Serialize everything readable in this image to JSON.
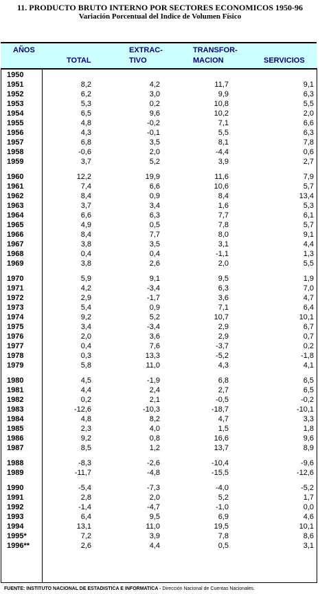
{
  "title": "11.  PRODUCTO BRUTO INTERNO POR SECTORES ECONOMICOS 1950-96",
  "subtitle": "Variación Porcentual del Indice de Volumen Físico",
  "columns": {
    "year": "AÑOS",
    "total": "TOTAL",
    "extractivo_1": "EXTRAC-",
    "extractivo_2": "TIVO",
    "transformacion_1": "TRANSFOR-",
    "transformacion_2": "MACION",
    "servicios": "SERVICIOS"
  },
  "groups": [
    [
      {
        "year": "1950",
        "total": "",
        "ext": "",
        "trans": "",
        "serv": ""
      },
      {
        "year": "1951",
        "total": "8,2",
        "ext": "4,2",
        "trans": "11,7",
        "serv": "9,1"
      },
      {
        "year": "1952",
        "total": "6,2",
        "ext": "3,0",
        "trans": "9,9",
        "serv": "6,3"
      },
      {
        "year": "1953",
        "total": "5,3",
        "ext": "0,2",
        "trans": "10,8",
        "serv": "5,5"
      },
      {
        "year": "1954",
        "total": "6,5",
        "ext": "9,6",
        "trans": "10,2",
        "serv": "2,0"
      },
      {
        "year": "1955",
        "total": "4,8",
        "ext": "-0,2",
        "trans": "7,1",
        "serv": "6,6"
      },
      {
        "year": "1956",
        "total": "4,3",
        "ext": "-0,1",
        "trans": "5,5",
        "serv": "6,3"
      },
      {
        "year": "1957",
        "total": "6,8",
        "ext": "3,5",
        "trans": "8,1",
        "serv": "7,8"
      },
      {
        "year": "1958",
        "total": "-0,6",
        "ext": "2,0",
        "trans": "-4,4",
        "serv": "0,6"
      },
      {
        "year": "1959",
        "total": "3,7",
        "ext": "5,2",
        "trans": "3,9",
        "serv": "2,7"
      }
    ],
    [
      {
        "year": "1960",
        "total": "12,2",
        "ext": "19,9",
        "trans": "11,6",
        "serv": "7,9"
      },
      {
        "year": "1961",
        "total": "7,4",
        "ext": "6,6",
        "trans": "10,6",
        "serv": "5,7"
      },
      {
        "year": "1962",
        "total": "8,4",
        "ext": "0,9",
        "trans": "8,4",
        "serv": "13,4"
      },
      {
        "year": "1963",
        "total": "3,7",
        "ext": "3,4",
        "trans": "1,6",
        "serv": "5,3"
      },
      {
        "year": "1964",
        "total": "6,6",
        "ext": "6,3",
        "trans": "7,7",
        "serv": "6,1"
      },
      {
        "year": "1965",
        "total": "4,9",
        "ext": "0,5",
        "trans": "7,8",
        "serv": "5,7"
      },
      {
        "year": "1966",
        "total": "8,4",
        "ext": "7,7",
        "trans": "8,0",
        "serv": "9,1"
      },
      {
        "year": "1967",
        "total": "3,8",
        "ext": "3,5",
        "trans": "3,1",
        "serv": "4,4"
      },
      {
        "year": "1968",
        "total": "0,4",
        "ext": "0,4",
        "trans": "-1,1",
        "serv": "1,3"
      },
      {
        "year": "1969",
        "total": "3,8",
        "ext": "2,6",
        "trans": "2,0",
        "serv": "5,5"
      }
    ],
    [
      {
        "year": "1970",
        "total": "5,9",
        "ext": "9,1",
        "trans": "9,5",
        "serv": "1,9"
      },
      {
        "year": "1971",
        "total": "4,2",
        "ext": "-3,4",
        "trans": "6,3",
        "serv": "7,0"
      },
      {
        "year": "1972",
        "total": "2,9",
        "ext": "-1,7",
        "trans": "3,6",
        "serv": "4,7"
      },
      {
        "year": "1973",
        "total": "5,4",
        "ext": "0,9",
        "trans": "7,1",
        "serv": "6,4"
      },
      {
        "year": "1974",
        "total": "9,2",
        "ext": "5,2",
        "trans": "10,7",
        "serv": "10,1"
      },
      {
        "year": "1975",
        "total": "3,4",
        "ext": "-3,4",
        "trans": "2,9",
        "serv": "6,7"
      },
      {
        "year": "1976",
        "total": "2,0",
        "ext": "3,6",
        "trans": "2,9",
        "serv": "0,7"
      },
      {
        "year": "1977",
        "total": "0,4",
        "ext": "7,6",
        "trans": "-3,7",
        "serv": "0,2"
      },
      {
        "year": "1978",
        "total": "0,3",
        "ext": "13,3",
        "trans": "-5,2",
        "serv": "-1,8"
      },
      {
        "year": "1979",
        "total": "5,8",
        "ext": "11,0",
        "trans": "4,3",
        "serv": "4,1"
      }
    ],
    [
      {
        "year": "1980",
        "total": "4,5",
        "ext": "-1,9",
        "trans": "6,8",
        "serv": "6,5"
      },
      {
        "year": "1981",
        "total": "4,4",
        "ext": "2,4",
        "trans": "2,7",
        "serv": "6,5"
      },
      {
        "year": "1982",
        "total": "0,2",
        "ext": "2,1",
        "trans": "-0,5",
        "serv": "-0,2"
      },
      {
        "year": "1983",
        "total": "-12,6",
        "ext": "-10,3",
        "trans": "-18,7",
        "serv": "-10,1"
      },
      {
        "year": "1984",
        "total": "4,8",
        "ext": "8,2",
        "trans": "4,7",
        "serv": "3,3"
      },
      {
        "year": "1985",
        "total": "2,3",
        "ext": "4,0",
        "trans": "1,5",
        "serv": "1,8"
      },
      {
        "year": "1986",
        "total": "9,2",
        "ext": "0,8",
        "trans": "16,6",
        "serv": "9,6"
      },
      {
        "year": "1987",
        "total": "8,5",
        "ext": "1,2",
        "trans": "13,7",
        "serv": "8,9"
      }
    ],
    [
      {
        "year": "1988",
        "total": "-8,3",
        "ext": "-2,6",
        "trans": "-10,4",
        "serv": "-9,6"
      },
      {
        "year": "1989",
        "total": "-11,7",
        "ext": "-4,8",
        "trans": "-15,5",
        "serv": "-12,6"
      }
    ],
    [
      {
        "year": "1990",
        "total": "-5,4",
        "ext": "-7,3",
        "trans": "-4,0",
        "serv": "-5,2"
      },
      {
        "year": "1991",
        "total": "2,8",
        "ext": "2,0",
        "trans": "5,2",
        "serv": "1,7"
      },
      {
        "year": "1992",
        "total": "-1,4",
        "ext": "-4,7",
        "trans": "-1,0",
        "serv": "0,0"
      },
      {
        "year": "1993",
        "total": "6,4",
        "ext": "9,5",
        "trans": "6,9",
        "serv": "4,6"
      },
      {
        "year": "1994",
        "total": "13,1",
        "ext": "11,0",
        "trans": "19,5",
        "serv": "10,1"
      },
      {
        "year": "1995*",
        "total": "7,2",
        "ext": "3,9",
        "trans": "7,8",
        "serv": "8,6"
      },
      {
        "year": "1996**",
        "total": "2,6",
        "ext": "4,4",
        "trans": "0,5",
        "serv": "3,1"
      }
    ]
  ],
  "footer": {
    "source": "FUENTE: INSTITUTO NACIONAL DE ESTADISTICA E INFORMATICA - ",
    "office": "Dirección Nacional de Cuentas Nacionales."
  }
}
